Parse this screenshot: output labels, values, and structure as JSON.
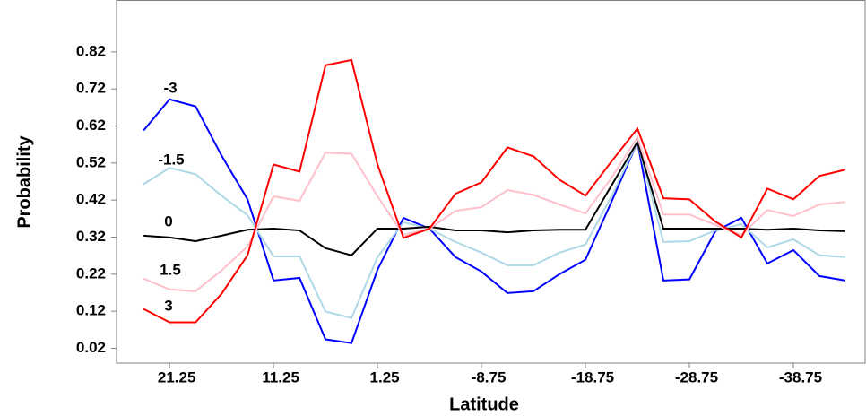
{
  "chart_data": {
    "type": "line",
    "x_label": "Latitude",
    "y_label": "Probability",
    "x": [
      23.75,
      21.25,
      18.75,
      16.25,
      13.75,
      11.25,
      8.75,
      6.25,
      3.75,
      1.25,
      -1.25,
      -3.75,
      -6.25,
      -8.75,
      -11.25,
      -13.75,
      -16.25,
      -18.75,
      -21.25,
      -23.75,
      -26.25,
      -28.75,
      -31.25,
      -33.75,
      -36.25,
      -38.75,
      -41.25,
      -43.75
    ],
    "series": [
      {
        "name": "-3",
        "color": "#0000ff",
        "values": [
          0.608,
          0.692,
          0.673,
          0.54,
          0.422,
          0.203,
          0.21,
          0.044,
          0.034,
          0.232,
          0.372,
          0.343,
          0.266,
          0.227,
          0.169,
          0.174,
          0.22,
          0.259,
          0.415,
          0.577,
          0.203,
          0.206,
          0.336,
          0.372,
          0.249,
          0.285,
          0.215,
          0.203
        ]
      },
      {
        "name": "-1.5",
        "color": "#add8e6",
        "values": [
          0.463,
          0.507,
          0.49,
          0.432,
          0.379,
          0.268,
          0.268,
          0.119,
          0.102,
          0.266,
          0.36,
          0.343,
          0.307,
          0.278,
          0.244,
          0.244,
          0.278,
          0.3,
          0.43,
          0.577,
          0.307,
          0.309,
          0.338,
          0.355,
          0.292,
          0.314,
          0.271,
          0.266
        ]
      },
      {
        "name": "0",
        "color": "#000000",
        "values": [
          0.324,
          0.319,
          0.309,
          0.324,
          0.34,
          0.343,
          0.338,
          0.29,
          0.271,
          0.343,
          0.343,
          0.348,
          0.338,
          0.338,
          0.333,
          0.338,
          0.34,
          0.34,
          0.459,
          0.577,
          0.343,
          0.343,
          0.343,
          0.343,
          0.34,
          0.343,
          0.338,
          0.336
        ]
      },
      {
        "name": "1.5",
        "color": "#ffc0cb",
        "values": [
          0.208,
          0.179,
          0.174,
          0.23,
          0.295,
          0.43,
          0.418,
          0.548,
          0.545,
          0.43,
          0.326,
          0.343,
          0.391,
          0.401,
          0.447,
          0.434,
          0.408,
          0.384,
          0.48,
          0.589,
          0.381,
          0.381,
          0.353,
          0.326,
          0.393,
          0.377,
          0.408,
          0.415
        ]
      },
      {
        "name": "3",
        "color": "#ff0000",
        "values": [
          0.126,
          0.09,
          0.09,
          0.167,
          0.271,
          0.516,
          0.497,
          0.784,
          0.798,
          0.516,
          0.318,
          0.343,
          0.437,
          0.468,
          0.562,
          0.538,
          0.475,
          0.432,
          0.524,
          0.613,
          0.425,
          0.422,
          0.362,
          0.319,
          0.451,
          0.422,
          0.485,
          0.502
        ]
      }
    ],
    "xlim": [
      26.35,
      -45.65
    ],
    "xticks": [
      21.25,
      11.25,
      1.25,
      -8.75,
      -18.75,
      -28.75,
      -38.75
    ],
    "ylim": [
      -0.02,
      0.96
    ],
    "yticks": [
      0.02,
      0.12,
      0.22,
      0.32,
      0.42,
      0.52,
      0.62,
      0.72,
      0.82
    ]
  }
}
